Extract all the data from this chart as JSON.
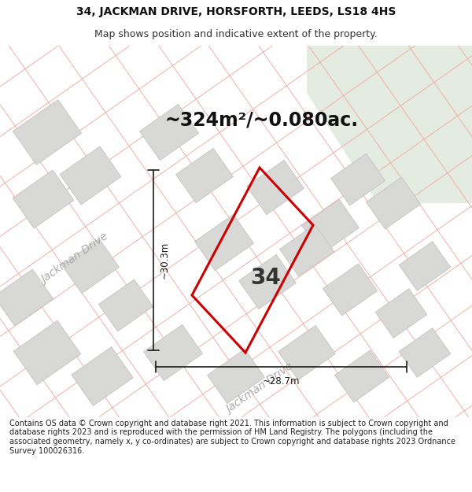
{
  "title_line1": "34, JACKMAN DRIVE, HORSFORTH, LEEDS, LS18 4HS",
  "title_line2": "Map shows position and indicative extent of the property.",
  "area_text": "~324m²/~0.080ac.",
  "property_number": "34",
  "dim_width": "~28.7m",
  "dim_height": "~30.3m",
  "street_label_lower": "Jackman Drive",
  "street_label_upper": "Jackman Drive",
  "footer_text": "Contains OS data © Crown copyright and database right 2021. This information is subject to Crown copyright and database rights 2023 and is reproduced with the permission of HM Land Registry. The polygons (including the associated geometry, namely x, y co-ordinates) are subject to Crown copyright and database rights 2023 Ordnance Survey 100026316.",
  "map_bg": "#f2f2f0",
  "map_bg_green": "#e4ebe0",
  "road_line_color": "#f0b0a8",
  "building_face_color": "#d8d8d6",
  "building_edge_color": "#c4c4c2",
  "property_edge_color": "#cc0000",
  "dim_line_color": "#1a1a1a",
  "title_fontsize": 10,
  "subtitle_fontsize": 9,
  "area_fontsize": 17,
  "number_fontsize": 20,
  "street_fontsize": 10,
  "footer_fontsize": 7.0,
  "title_bg": "#ffffff",
  "footer_bg": "#ffffff"
}
